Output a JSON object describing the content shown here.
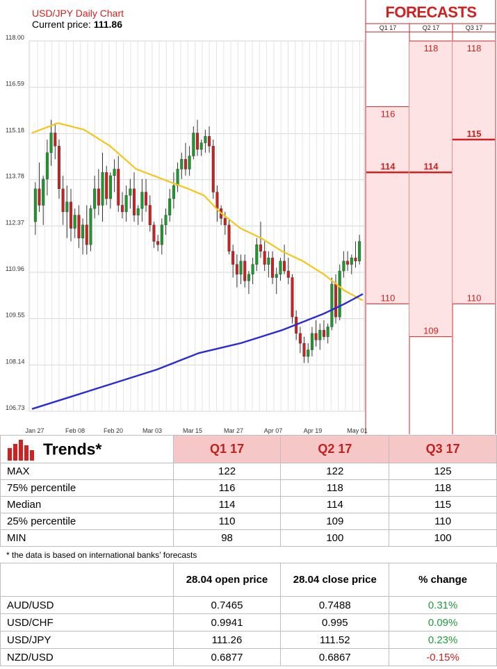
{
  "chart": {
    "title": "USD/JPY Daily Chart",
    "current_price_label": "Current price: ",
    "current_price": "111.86"
  },
  "forecasts": {
    "header": "FORECASTS",
    "columns": [
      "Q1 17",
      "Q2 17",
      "Q3 17"
    ]
  },
  "trends": {
    "title": "Trends*",
    "columns": [
      "Q1 17",
      "Q2 17",
      "Q3 17"
    ],
    "rows": [
      {
        "label": "MAX",
        "values": [
          "122",
          "122",
          "125"
        ]
      },
      {
        "label": "75% percentile",
        "values": [
          "116",
          "118",
          "118"
        ]
      },
      {
        "label": "Median",
        "values": [
          "114",
          "114",
          "115"
        ]
      },
      {
        "label": "25% percentile",
        "values": [
          "110",
          "109",
          "110"
        ]
      },
      {
        "label": "MIN",
        "values": [
          "98",
          "100",
          "100"
        ]
      }
    ],
    "footnote": "* the data is based on international banks’ forecasts"
  },
  "prices": {
    "headers": [
      "28.04 open price",
      "28.04 close price",
      "% change"
    ],
    "rows": [
      {
        "pair": "AUD/USD",
        "open": "0.7465",
        "close": "0.7488",
        "change": "0.31%",
        "dir": "pos"
      },
      {
        "pair": "USD/CHF",
        "open": "0.9941",
        "close": "0.995",
        "change": "0.09%",
        "dir": "pos"
      },
      {
        "pair": "USD/JPY",
        "open": "111.26",
        "close": "111.52",
        "change": "0.23%",
        "dir": "pos"
      },
      {
        "pair": "NZD/USD",
        "open": "0.6877",
        "close": "0.6867",
        "change": "-0.15%",
        "dir": "neg"
      }
    ]
  },
  "colors": {
    "bull": "#1a9a2a",
    "bear": "#d01f1f",
    "ma_short": "#f5c518",
    "ma_long": "#2a2ad8",
    "forecast_fill": "#fde3e3",
    "forecast_line": "#d21f1f"
  },
  "chart_data": {
    "type": "candlestick",
    "title": "USD/JPY Daily Chart",
    "ylim": [
      106.73,
      118.0
    ],
    "yticks": [
      "118.00",
      "116.59",
      "115.18",
      "113.78",
      "112.37",
      "110.96",
      "109.55",
      "108.14",
      "106.73"
    ],
    "xticks": [
      "Jan 27",
      "Feb 08",
      "Feb 20",
      "Mar 03",
      "Mar 15",
      "Mar 27",
      "Apr 07",
      "Apr 19",
      "May 01"
    ],
    "candles": [
      [
        112.5,
        113.7,
        112.1,
        113.5
      ],
      [
        113.5,
        114.3,
        112.8,
        113.0
      ],
      [
        113.0,
        113.9,
        112.4,
        113.8
      ],
      [
        113.8,
        115.0,
        113.3,
        114.6
      ],
      [
        114.6,
        115.6,
        114.2,
        115.2
      ],
      [
        115.2,
        115.5,
        114.4,
        114.8
      ],
      [
        114.8,
        115.0,
        113.2,
        113.5
      ],
      [
        113.5,
        113.9,
        112.4,
        112.8
      ],
      [
        112.8,
        113.6,
        112.0,
        113.1
      ],
      [
        113.1,
        113.5,
        111.9,
        112.3
      ],
      [
        112.3,
        112.9,
        112.0,
        112.7
      ],
      [
        112.7,
        113.0,
        111.7,
        112.0
      ],
      [
        112.0,
        112.6,
        111.5,
        112.4
      ],
      [
        112.4,
        113.0,
        111.5,
        111.8
      ],
      [
        111.8,
        113.0,
        111.6,
        112.9
      ],
      [
        112.9,
        113.9,
        112.6,
        113.5
      ],
      [
        113.5,
        114.1,
        112.7,
        113.0
      ],
      [
        113.0,
        114.6,
        112.5,
        114.0
      ],
      [
        114.0,
        114.2,
        113.0,
        113.2
      ],
      [
        113.2,
        114.0,
        112.9,
        113.9
      ],
      [
        113.9,
        114.4,
        113.4,
        114.1
      ],
      [
        114.1,
        114.5,
        112.8,
        113.0
      ],
      [
        113.0,
        113.4,
        112.6,
        112.8
      ],
      [
        112.8,
        113.6,
        112.5,
        113.3
      ],
      [
        113.3,
        113.8,
        112.9,
        113.5
      ],
      [
        113.5,
        114.0,
        112.5,
        112.7
      ],
      [
        112.7,
        113.0,
        112.4,
        112.9
      ],
      [
        112.9,
        113.8,
        112.5,
        113.4
      ],
      [
        113.4,
        113.8,
        112.8,
        113.0
      ],
      [
        113.0,
        113.3,
        112.2,
        112.4
      ],
      [
        112.4,
        112.5,
        111.7,
        111.9
      ],
      [
        111.9,
        112.1,
        111.6,
        111.8
      ],
      [
        111.8,
        112.6,
        111.5,
        112.4
      ],
      [
        112.4,
        112.9,
        112.1,
        112.7
      ],
      [
        112.7,
        113.5,
        112.5,
        113.2
      ],
      [
        113.2,
        114.0,
        112.9,
        113.6
      ],
      [
        113.6,
        114.3,
        113.4,
        114.1
      ],
      [
        114.1,
        114.6,
        113.8,
        114.4
      ],
      [
        114.4,
        114.9,
        113.9,
        114.1
      ],
      [
        114.1,
        114.8,
        113.9,
        114.5
      ],
      [
        114.5,
        115.4,
        114.4,
        115.2
      ],
      [
        115.2,
        115.6,
        114.5,
        114.7
      ],
      [
        114.7,
        115.0,
        114.5,
        114.9
      ],
      [
        114.9,
        115.3,
        114.6,
        115.1
      ],
      [
        115.1,
        115.4,
        114.6,
        114.8
      ],
      [
        114.8,
        115.0,
        113.2,
        113.4
      ],
      [
        113.4,
        113.6,
        112.5,
        112.9
      ],
      [
        112.9,
        113.0,
        112.4,
        112.6
      ],
      [
        112.6,
        112.8,
        112.1,
        112.4
      ],
      [
        112.4,
        112.6,
        111.5,
        111.6
      ],
      [
        111.6,
        111.8,
        110.8,
        111.2
      ],
      [
        111.2,
        111.5,
        110.5,
        110.9
      ],
      [
        110.9,
        111.5,
        110.6,
        111.3
      ],
      [
        111.3,
        111.5,
        110.5,
        110.7
      ],
      [
        110.7,
        111.0,
        110.3,
        110.9
      ],
      [
        110.9,
        111.4,
        110.6,
        111.2
      ],
      [
        111.2,
        112.0,
        111.0,
        111.8
      ],
      [
        111.8,
        112.5,
        111.4,
        111.6
      ],
      [
        111.6,
        111.9,
        111.0,
        111.2
      ],
      [
        111.2,
        111.6,
        110.8,
        111.4
      ],
      [
        111.4,
        111.6,
        110.6,
        110.8
      ],
      [
        110.8,
        111.1,
        110.3,
        110.9
      ],
      [
        110.9,
        111.4,
        110.7,
        111.3
      ],
      [
        111.3,
        111.8,
        110.9,
        111.0
      ],
      [
        111.0,
        111.4,
        110.6,
        110.8
      ],
      [
        110.8,
        110.9,
        109.4,
        109.6
      ],
      [
        109.6,
        109.8,
        108.9,
        109.1
      ],
      [
        109.1,
        109.3,
        108.5,
        108.8
      ],
      [
        108.8,
        109.0,
        108.2,
        108.4
      ],
      [
        108.4,
        108.8,
        108.2,
        108.6
      ],
      [
        108.6,
        109.3,
        108.4,
        109.1
      ],
      [
        109.1,
        109.5,
        108.7,
        108.9
      ],
      [
        108.9,
        109.4,
        108.6,
        109.2
      ],
      [
        109.2,
        109.5,
        108.9,
        109.0
      ],
      [
        109.0,
        109.4,
        108.8,
        109.3
      ],
      [
        109.3,
        110.8,
        109.2,
        110.6
      ],
      [
        110.6,
        110.9,
        109.4,
        109.6
      ],
      [
        109.6,
        111.2,
        109.5,
        111.0
      ],
      [
        111.0,
        111.6,
        110.8,
        111.3
      ],
      [
        111.3,
        111.6,
        111.0,
        111.2
      ],
      [
        111.2,
        111.5,
        110.9,
        111.4
      ],
      [
        111.4,
        111.9,
        111.1,
        111.3
      ],
      [
        111.3,
        112.1,
        111.2,
        111.9
      ]
    ],
    "ma_short": [
      [
        0,
        115.2
      ],
      [
        10,
        115.5
      ],
      [
        20,
        115.3
      ],
      [
        30,
        114.8
      ],
      [
        40,
        114.1
      ],
      [
        50,
        113.8
      ],
      [
        60,
        113.5
      ],
      [
        66,
        113.3
      ],
      [
        72,
        112.8
      ],
      [
        80,
        112.3
      ],
      [
        88,
        112.0
      ],
      [
        96,
        111.6
      ],
      [
        104,
        111.3
      ],
      [
        112,
        110.9
      ],
      [
        120,
        110.4
      ],
      [
        127,
        110.1
      ]
    ],
    "ma_long": [
      [
        0,
        106.8
      ],
      [
        16,
        107.2
      ],
      [
        32,
        107.6
      ],
      [
        48,
        108.0
      ],
      [
        64,
        108.5
      ],
      [
        80,
        108.8
      ],
      [
        96,
        109.2
      ],
      [
        112,
        109.7
      ],
      [
        120,
        110.0
      ],
      [
        127,
        110.3
      ]
    ],
    "forecasts": [
      {
        "quarter": "Q1 17",
        "p75": 116,
        "median": 114,
        "p25": 110
      },
      {
        "quarter": "Q2 17",
        "p75": 118,
        "median": 114,
        "p25": 109
      },
      {
        "quarter": "Q3 17",
        "p75": 118,
        "median": 115,
        "p25": 110
      }
    ],
    "forecast_ylim": [
      106.73,
      118.0
    ]
  }
}
